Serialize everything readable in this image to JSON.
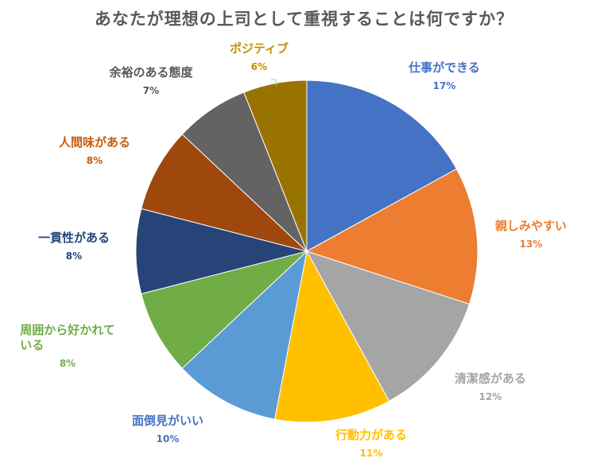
{
  "chart_data": {
    "type": "pie",
    "title": "あなたが理想の上司として重視することは何ですか？",
    "slices": [
      {
        "label": "仕事ができる",
        "value": 17,
        "display": "17%",
        "color": "#4472C4"
      },
      {
        "label": "親しみやすい",
        "value": 13,
        "display": "13%",
        "color": "#ED7D31"
      },
      {
        "label": "清潔感がある",
        "value": 12,
        "display": "12%",
        "color": "#A5A5A5"
      },
      {
        "label": "行動力がある",
        "value": 11,
        "display": "11%",
        "color": "#FFC000"
      },
      {
        "label": "面倒見がいい",
        "value": 10,
        "display": "10%",
        "color": "#5B9BD5"
      },
      {
        "label": "周囲から好かれている",
        "line1": "周囲から好かれて",
        "line2": "いる",
        "value": 8,
        "display": "8%",
        "color": "#70AD47"
      },
      {
        "label": "一貫性がある",
        "value": 8,
        "display": "8%",
        "color": "#264478"
      },
      {
        "label": "人間味がある",
        "value": 8,
        "display": "8%",
        "color": "#9E480E"
      },
      {
        "label": "余裕のある態度",
        "value": 7,
        "display": "7%",
        "color": "#636363"
      },
      {
        "label": "ポジティブ",
        "value": 6,
        "display": "6%",
        "color": "#997300"
      }
    ],
    "label_colors": {
      "仕事ができる": "#4472C4",
      "親しみやすい": "#ED7D31",
      "清潔感がある": "#A5A5A5",
      "行動力がある": "#FFC000",
      "面倒見がいい": "#4472C4",
      "周囲から好かれている": "#70AD47",
      "一貫性がある": "#264478",
      "人間味がある": "#C55A11",
      "余裕のある態度": "#595959",
      "ポジティブ": "#BF9000"
    },
    "start_angle_deg": 0,
    "direction": "clockwise",
    "legend": "none"
  }
}
